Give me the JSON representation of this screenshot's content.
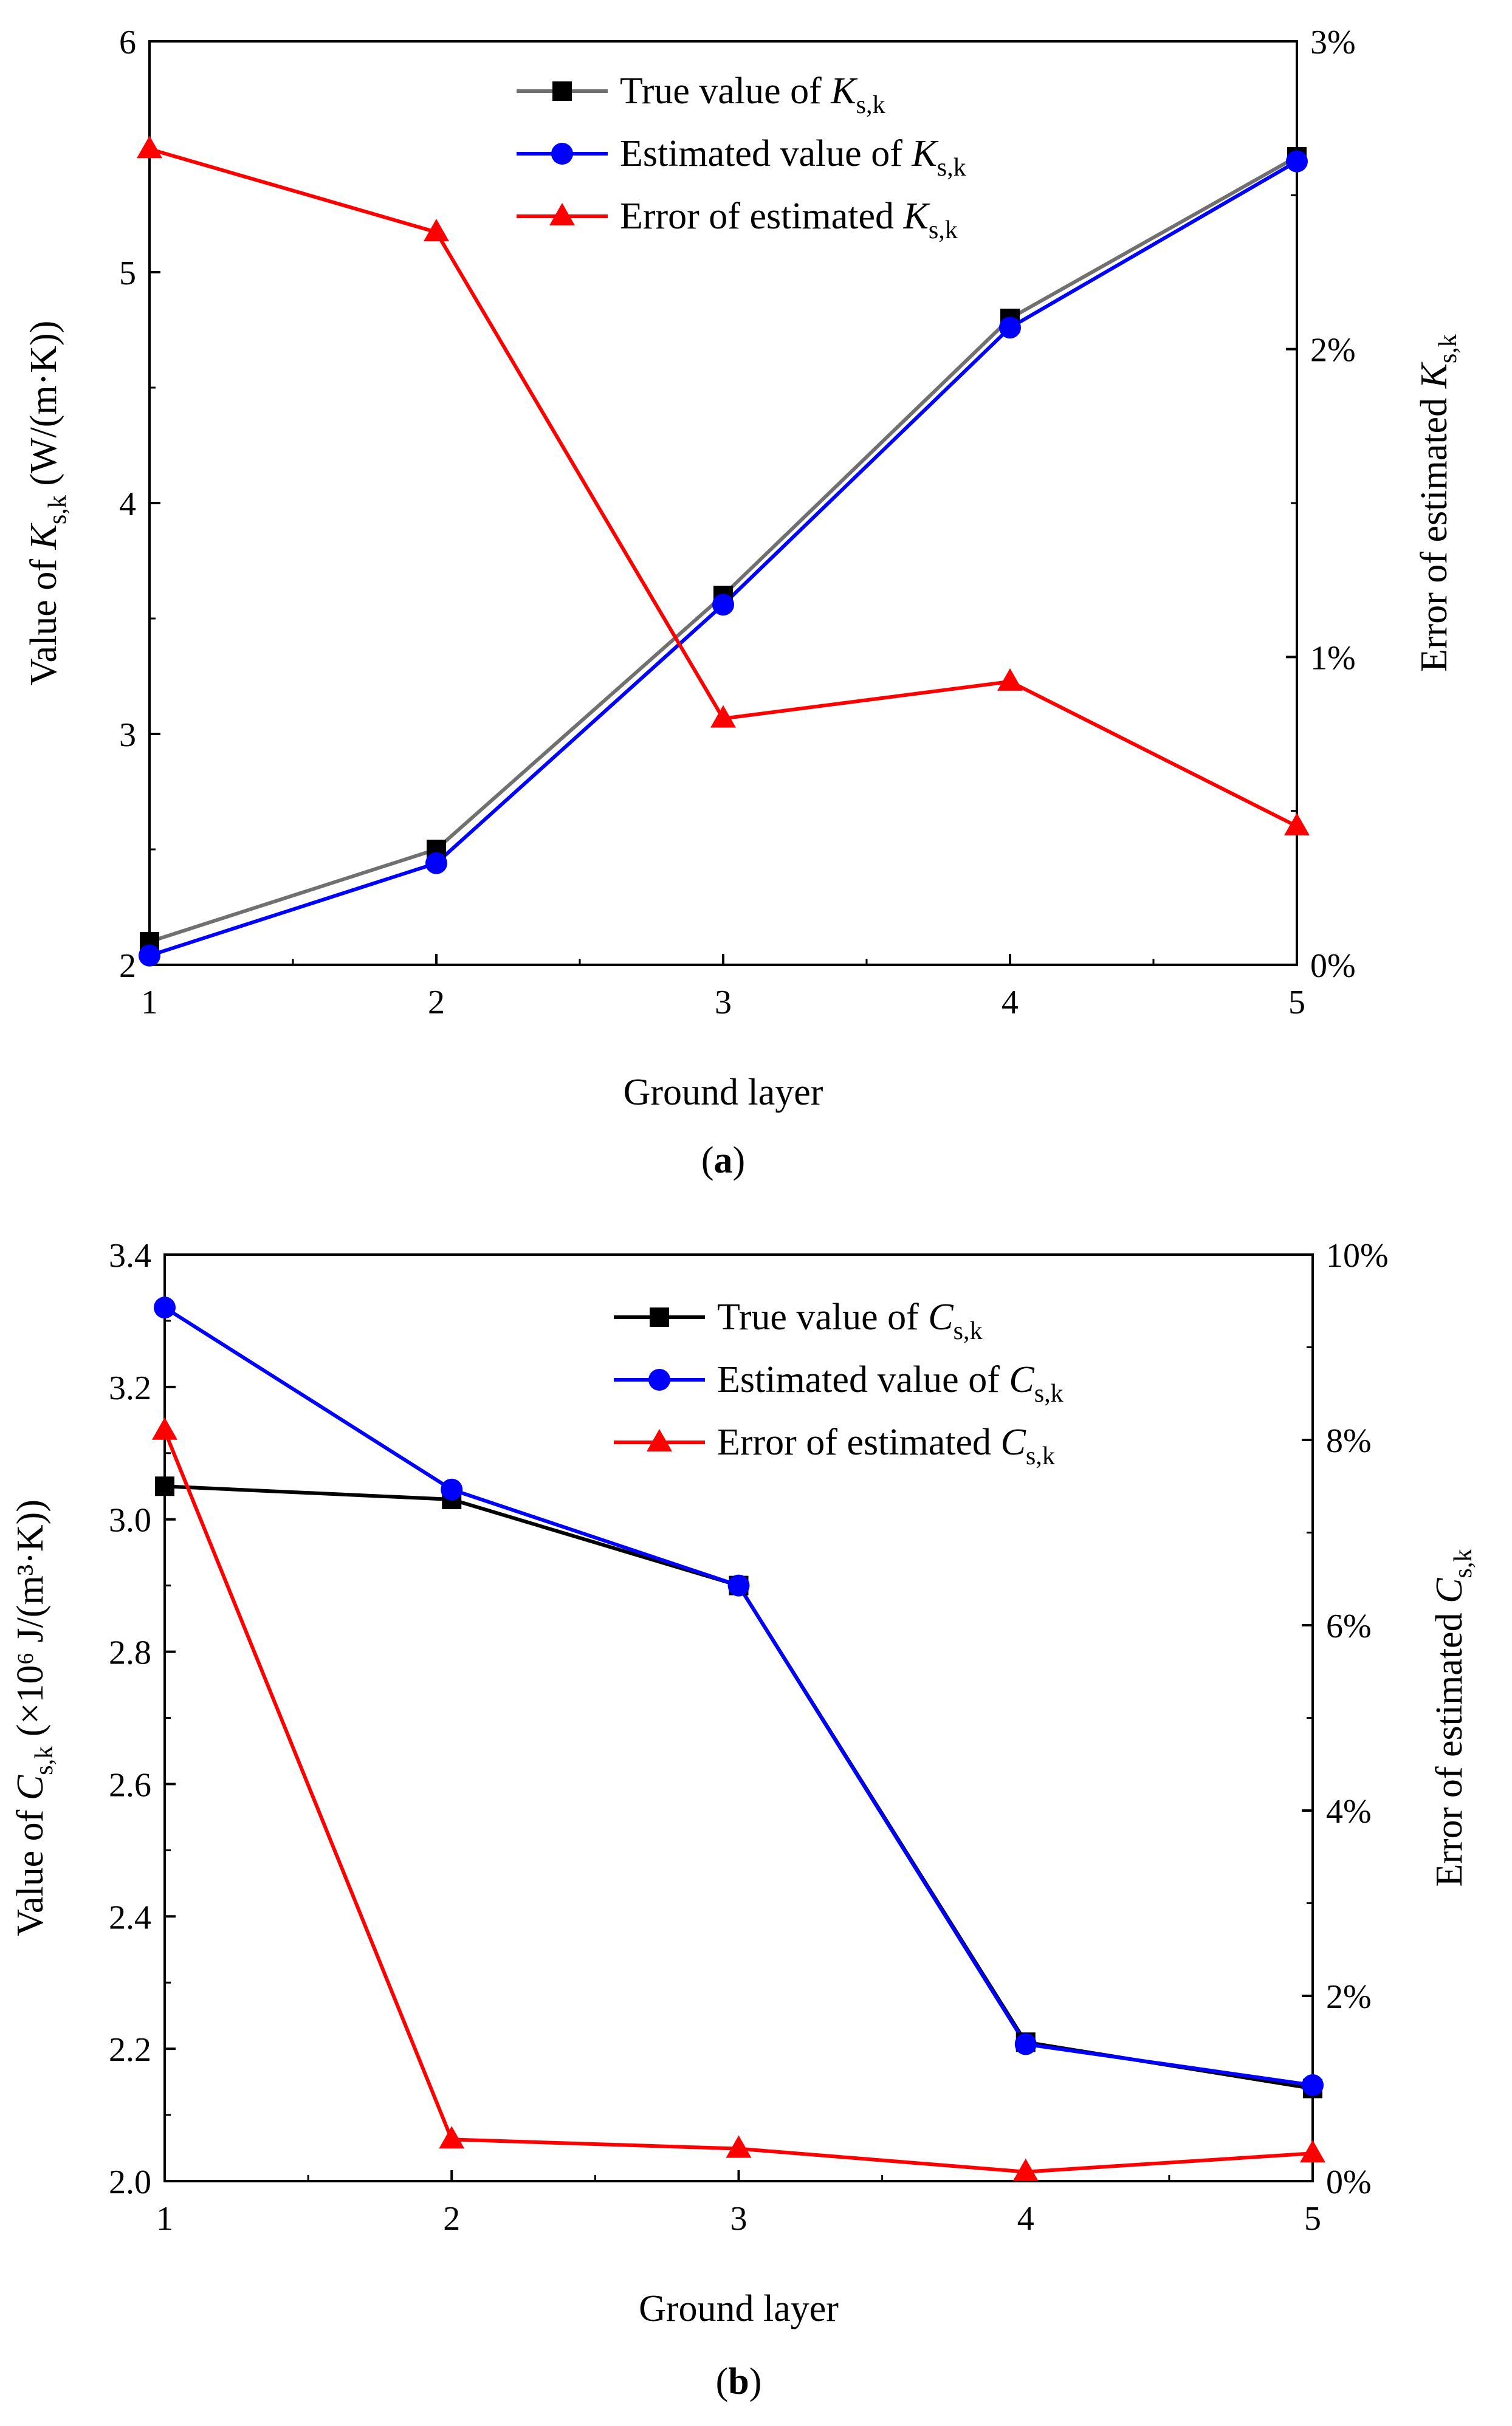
{
  "chart_data": [
    {
      "type": "line",
      "panel_label": "(a)",
      "xlabel": "Ground layer",
      "ylabel": "Value of K_s,k (W/(m·K))",
      "ylabel_parts": {
        "pre": "Value of ",
        "sym": "K",
        "sub": "s,k",
        "post": " (W/(m·K))"
      },
      "y2label": "Error of estimated K_s,k",
      "y2label_parts": {
        "pre": "Error of estimated ",
        "sym": "K",
        "sub": "s,k"
      },
      "x": [
        1,
        2,
        3,
        4,
        5
      ],
      "xlim": [
        1,
        5
      ],
      "ylim": [
        2,
        6
      ],
      "y2lim": [
        0,
        3
      ],
      "x_ticks": [
        1,
        2,
        3,
        4,
        5
      ],
      "y_ticks": [
        2,
        3,
        4,
        5,
        6
      ],
      "y2_ticks": [
        "0%",
        "1%",
        "2%",
        "3%"
      ],
      "y2_tick_values": [
        0,
        1,
        2,
        3
      ],
      "legend_position": "top-center",
      "grid": false,
      "series": [
        {
          "name": "True value of K_s,k",
          "name_parts": {
            "pre": "True value of ",
            "sym": "K",
            "sub": "s,k"
          },
          "axis": "left",
          "marker": "square",
          "color": "#707070",
          "marker_color": "#000000",
          "values": [
            2.1,
            2.5,
            3.6,
            4.8,
            5.5
          ]
        },
        {
          "name": "Estimated value of K_s,k",
          "name_parts": {
            "pre": "Estimated value of ",
            "sym": "K",
            "sub": "s,k"
          },
          "axis": "left",
          "marker": "circle",
          "color": "#0000FF",
          "marker_color": "#0000FF",
          "values": [
            2.04,
            2.44,
            3.56,
            4.76,
            5.48
          ]
        },
        {
          "name": "Error of estimated K_s,k",
          "name_parts": {
            "pre": "Error of estimated ",
            "sym": "K",
            "sub": "s,k"
          },
          "axis": "right",
          "marker": "triangle",
          "color": "#FF0000",
          "marker_color": "#FF0000",
          "values": [
            2.65,
            2.38,
            0.8,
            0.92,
            0.45
          ]
        }
      ]
    },
    {
      "type": "line",
      "panel_label": "(b)",
      "xlabel": "Ground layer",
      "ylabel": "Value of C_s,k (×10^6 J/(m^3·K))",
      "ylabel_parts": {
        "pre": "Value of ",
        "sym": "C",
        "sub": "s,k",
        "post": " (×10⁶ J/(m³·K))"
      },
      "y2label": "Error of estimated C_s,k",
      "y2label_parts": {
        "pre": "Error of estimated ",
        "sym": "C",
        "sub": "s,k"
      },
      "x": [
        1,
        2,
        3,
        4,
        5
      ],
      "xlim": [
        1,
        5
      ],
      "ylim": [
        2.0,
        3.4
      ],
      "y2lim": [
        0,
        10
      ],
      "x_ticks": [
        1,
        2,
        3,
        4,
        5
      ],
      "y_ticks": [
        "2.0",
        "2.2",
        "2.4",
        "2.6",
        "2.8",
        "3.0",
        "3.2",
        "3.4"
      ],
      "y_tick_values": [
        2.0,
        2.2,
        2.4,
        2.6,
        2.8,
        3.0,
        3.2,
        3.4
      ],
      "y2_ticks": [
        "0%",
        "2%",
        "4%",
        "6%",
        "8%",
        "10%"
      ],
      "y2_tick_values": [
        0,
        2,
        4,
        6,
        8,
        10
      ],
      "legend_position": "top-center",
      "grid": false,
      "series": [
        {
          "name": "True value of C_s,k",
          "name_parts": {
            "pre": "True value of ",
            "sym": "C",
            "sub": "s,k"
          },
          "axis": "left",
          "marker": "square",
          "color": "#000000",
          "marker_color": "#000000",
          "values": [
            3.05,
            3.03,
            2.9,
            2.21,
            2.14
          ]
        },
        {
          "name": "Estimated value of C_s,k",
          "name_parts": {
            "pre": "Estimated value of ",
            "sym": "C",
            "sub": "s,k"
          },
          "axis": "left",
          "marker": "circle",
          "color": "#0000FF",
          "marker_color": "#0000FF",
          "values": [
            3.32,
            3.045,
            2.9,
            2.207,
            2.145
          ]
        },
        {
          "name": "Error of estimated C_s,k",
          "name_parts": {
            "pre": "Error of estimated ",
            "sym": "C",
            "sub": "s,k"
          },
          "axis": "right",
          "marker": "triangle",
          "color": "#FF0000",
          "marker_color": "#FF0000",
          "values": [
            8.1,
            0.45,
            0.35,
            0.1,
            0.3
          ]
        }
      ]
    }
  ]
}
